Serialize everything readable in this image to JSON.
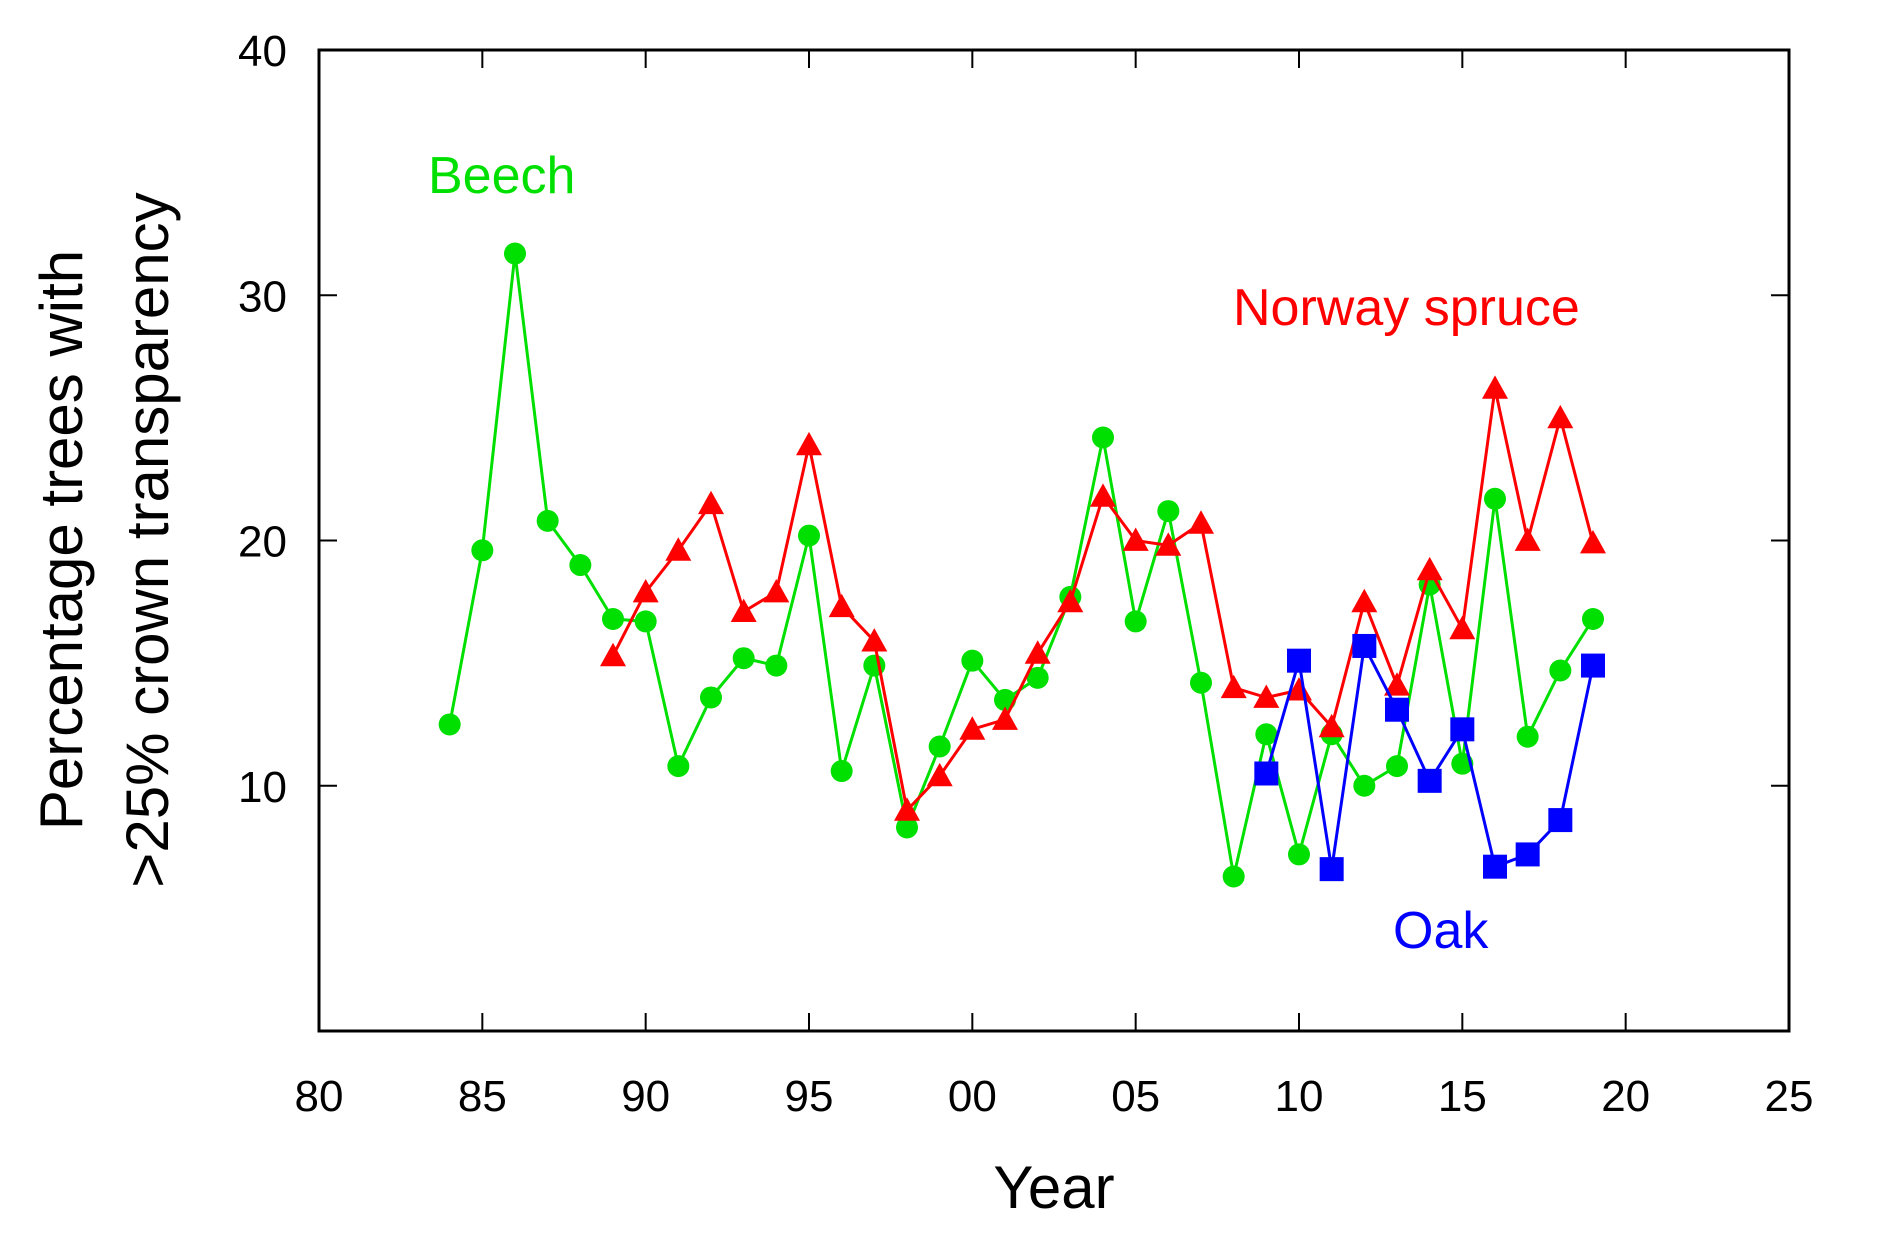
{
  "chart_data": {
    "type": "line",
    "xlabel": "Year",
    "ylabel": [
      "Percentage trees with",
      ">25% crown transparency"
    ],
    "xlim": [
      1980,
      2025
    ],
    "ylim": [
      0,
      40
    ],
    "xticks": [
      {
        "value": 1980,
        "label": "80"
      },
      {
        "value": 1985,
        "label": "85"
      },
      {
        "value": 1990,
        "label": "90"
      },
      {
        "value": 1995,
        "label": "95"
      },
      {
        "value": 2000,
        "label": "00"
      },
      {
        "value": 2005,
        "label": "05"
      },
      {
        "value": 2010,
        "label": "10"
      },
      {
        "value": 2015,
        "label": "15"
      },
      {
        "value": 2020,
        "label": "20"
      },
      {
        "value": 2025,
        "label": "25"
      }
    ],
    "yticks": [
      {
        "value": 10,
        "label": "10"
      },
      {
        "value": 20,
        "label": "20"
      },
      {
        "value": 30,
        "label": "30"
      },
      {
        "value": 40,
        "label": "40"
      }
    ],
    "grid": false,
    "legend": "inline labels",
    "series": [
      {
        "name": "Beech",
        "color": "#00e000",
        "marker": "circle",
        "label_position": "top-left",
        "x": [
          1984,
          1985,
          1986,
          1987,
          1988,
          1989,
          1990,
          1991,
          1992,
          1993,
          1994,
          1995,
          1996,
          1997,
          1998,
          1999,
          2000,
          2001,
          2002,
          2003,
          2004,
          2005,
          2006,
          2007,
          2008,
          2009,
          2010,
          2011,
          2012,
          2013,
          2014,
          2015,
          2016,
          2017,
          2018,
          2019
        ],
        "y": [
          12.5,
          19.6,
          31.7,
          20.8,
          19.0,
          16.8,
          16.7,
          10.8,
          13.6,
          15.2,
          14.9,
          20.2,
          10.6,
          14.9,
          8.3,
          11.6,
          15.1,
          13.5,
          14.4,
          17.7,
          24.2,
          16.7,
          21.2,
          14.2,
          6.3,
          12.1,
          7.2,
          12.1,
          10.0,
          10.8,
          18.2,
          10.9,
          21.7,
          12.0,
          14.7,
          16.8
        ]
      },
      {
        "name": "Norway spruce",
        "color": "#ff0000",
        "marker": "triangle",
        "label_position": "top-right",
        "x": [
          1989,
          1990,
          1991,
          1992,
          1993,
          1994,
          1995,
          1996,
          1997,
          1998,
          1999,
          2000,
          2001,
          2002,
          2003,
          2004,
          2005,
          2006,
          2007,
          2008,
          2009,
          2010,
          2011,
          2012,
          2013,
          2014,
          2015,
          2016,
          2017,
          2018,
          2019
        ],
        "y": [
          15.3,
          17.9,
          19.6,
          21.5,
          17.1,
          17.9,
          23.9,
          17.3,
          15.9,
          9.0,
          10.4,
          12.3,
          12.7,
          15.4,
          17.5,
          21.8,
          20.0,
          19.8,
          20.7,
          14.0,
          13.6,
          13.9,
          12.4,
          17.5,
          14.1,
          18.8,
          16.4,
          26.2,
          20.0,
          25.0,
          19.9
        ]
      },
      {
        "name": "Oak",
        "color": "#0000ff",
        "marker": "square",
        "label_position": "bottom-right",
        "x": [
          2009,
          2010,
          2011,
          2012,
          2013,
          2014,
          2015,
          2016,
          2017,
          2018,
          2019
        ],
        "y": [
          10.5,
          15.1,
          6.6,
          15.7,
          13.1,
          10.2,
          12.3,
          6.7,
          7.2,
          8.6,
          14.9
        ]
      }
    ]
  }
}
